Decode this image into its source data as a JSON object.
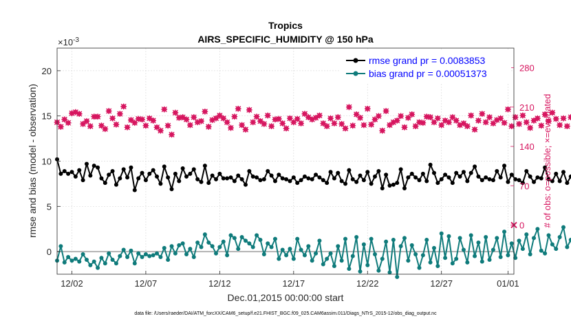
{
  "chart_data": {
    "type": "line",
    "title": "Tropics",
    "subtitle": "AIRS_SPECIFIC_HUMIDITY @ 150 hPa",
    "xlabel": "Dec.01,2015 00:00:00 start",
    "ylabel": "rmse and bias (model - observation)",
    "ylabel_right": "# of obs: o=possible; ×=evaluated",
    "y_exponent_label": "×10",
    "y_exponent_power": "-3",
    "footer": "data file: /Users/raeder/DAI/ATM_forcXX/CAM6_setup/f.e21.FHIST_BGC.f09_025.CAM6assim.011/Diags_NTrS_2015-12/obs_diag_output.nc",
    "x_range_days": [
      0.5,
      31.4
    ],
    "ylim": [
      -2.5,
      22.5
    ],
    "ylim_right": [
      -87.5,
      315
    ],
    "x_ticks": [
      {
        "day": 1.5,
        "label": "12/02"
      },
      {
        "day": 6.5,
        "label": "12/07"
      },
      {
        "day": 11.5,
        "label": "12/12"
      },
      {
        "day": 16.5,
        "label": "12/17"
      },
      {
        "day": 21.5,
        "label": "12/22"
      },
      {
        "day": 26.5,
        "label": "12/27"
      },
      {
        "day": 31.0,
        "label": "01/01"
      }
    ],
    "y_ticks": [
      "0",
      "5",
      "10",
      "15",
      "20"
    ],
    "y_ticks_right": [
      "0",
      "70",
      "140",
      "210",
      "280"
    ],
    "legend": [
      {
        "name": "rmse grand pr = 0.0083853",
        "color": "#000000"
      },
      {
        "name": "bias grand pr = 0.00051373",
        "color": "#0f7b7b"
      }
    ],
    "x_start_day": 0.5,
    "x_step_days": 0.25,
    "series": [
      {
        "name": "rmse",
        "color": "#000000",
        "values": [
          10.2,
          8.6,
          8.9,
          8.6,
          8.8,
          8.3,
          9.0,
          7.9,
          9.7,
          8.4,
          9.5,
          9.3,
          8.1,
          7.6,
          8.5,
          8.9,
          7.4,
          8.1,
          9.1,
          8.2,
          9.3,
          6.8,
          8.1,
          8.7,
          7.9,
          8.6,
          9.0,
          8.3,
          7.5,
          9.4,
          8.2,
          6.9,
          8.6,
          7.8,
          9.2,
          8.3,
          8.6,
          9.1,
          8.0,
          7.7,
          9.5,
          7.6,
          8.4,
          8.0,
          8.6,
          8.1,
          8.1,
          8.2,
          7.8,
          8.4,
          8.0,
          7.4,
          8.9,
          8.3,
          8.2,
          7.9,
          8.0,
          8.9,
          8.4,
          7.8,
          8.5,
          8.1,
          8.0,
          7.8,
          8.2,
          7.6,
          7.9,
          8.3,
          8.1,
          8.0,
          8.5,
          8.2,
          7.9,
          7.6,
          8.8,
          8.1,
          8.7,
          7.8,
          7.5,
          9.0,
          8.0,
          7.7,
          8.4,
          7.9,
          8.8,
          7.5,
          8.3,
          8.9,
          7.0,
          8.5,
          7.3,
          7.4,
          7.6,
          9.1,
          7.0,
          8.2,
          8.6,
          8.2,
          7.9,
          8.6,
          7.8,
          9.6,
          8.7,
          7.6,
          8.0,
          8.5,
          8.2,
          7.6,
          8.7,
          8.3,
          8.8,
          7.8,
          8.7,
          9.4,
          8.3,
          7.9,
          8.2,
          8.0,
          7.9,
          8.9,
          8.2,
          9.5,
          7.7,
          8.5,
          8.0,
          7.9,
          7.6,
          8.9,
          8.3,
          7.7,
          8.2,
          8.1,
          9.3,
          8.0,
          7.8,
          8.6,
          7.8,
          8.8,
          7.6,
          8.3,
          8.0,
          8.4,
          7.7,
          8.8,
          8.0,
          7.6,
          9.2,
          8.2,
          7.4,
          9.1,
          7.9,
          8.7,
          8.5,
          8.0,
          9.3,
          7.6,
          8.4,
          9.2,
          8.3,
          7.7,
          8.1,
          8.6,
          7.9,
          9.2,
          7.3,
          8.9,
          8.7,
          8.0,
          9.5,
          7.8,
          8.3,
          7.5,
          9.3,
          8.8,
          8.0,
          7.6,
          8.7,
          9.0,
          8.1,
          7.9,
          8.2,
          8.6,
          7.4,
          8.8,
          9.1,
          8.1,
          8.6,
          10.0,
          8.5,
          9.3,
          8.3,
          10.6,
          7.7,
          9.1,
          8.4,
          10.8,
          8.0,
          7.6
        ]
      },
      {
        "name": "bias",
        "color": "#0f7b7b",
        "values": [
          -1.0,
          0.6,
          -1.2,
          -0.6,
          -1.0,
          -0.8,
          -1.1,
          -0.3,
          -0.9,
          -1.5,
          -1.1,
          -1.8,
          -0.7,
          -1.3,
          -0.2,
          -0.9,
          -1.3,
          -0.5,
          0.2,
          -0.6,
          0.1,
          -1.3,
          -0.2,
          -0.6,
          -0.3,
          -0.5,
          -0.4,
          -0.2,
          -0.6,
          0.4,
          -0.9,
          0.6,
          -0.2,
          0.7,
          0.9,
          -0.3,
          0.3,
          -0.6,
          1.0,
          0.5,
          1.9,
          1.0,
          0.6,
          -0.2,
          0.5,
          1.1,
          -0.4,
          1.8,
          1.5,
          0.3,
          1.6,
          1.2,
          0.9,
          0.5,
          1.8,
          1.3,
          -0.3,
          0.9,
          0.5,
          1.4,
          -0.8,
          0.2,
          -0.4,
          0.3,
          -0.8,
          1.4,
          0.2,
          -0.4,
          0.6,
          -1.0,
          -0.2,
          1.2,
          -1.4,
          -0.8,
          -0.2,
          -1.6,
          0.6,
          -1.0,
          1.4,
          -1.9,
          -0.5,
          1.6,
          -2.2,
          0.8,
          -1.5,
          1.4,
          -0.3,
          -2.1,
          -0.8,
          1.1,
          -2.3,
          1.3,
          -2.8,
          0.6,
          1.5,
          -1.0,
          0.7,
          -0.3,
          -1.8,
          -0.4,
          1.3,
          -1.2,
          0.4,
          -1.6,
          2.0,
          -0.7,
          1.7,
          -1.3,
          -0.8,
          1.5,
          0.2,
          -1.2,
          1.8,
          -0.5,
          1.0,
          -1.1,
          1.6,
          -0.9,
          0.2,
          1.5,
          -0.6,
          2.2,
          -0.4,
          0.9,
          -0.7,
          1.2,
          0.3,
          1.9,
          -0.3,
          1.5,
          2.5,
          0.1,
          -0.2,
          1.8,
          0.8,
          0.3,
          1.6,
          2.7,
          0.5,
          1.3,
          -0.2,
          2.2,
          0.6,
          1.4,
          0.9,
          2.0,
          0.2,
          1.6,
          2.4,
          0.7,
          1.5,
          0.4,
          1.9,
          1.0,
          2.8,
          0.6,
          1.2,
          0.9,
          2.1,
          0.3,
          3.2,
          1.1,
          0.8,
          1.9,
          0.4,
          2.9,
          1.3,
          1.8,
          0.6,
          1.4,
          2.4,
          0.9,
          1.1,
          2.2,
          0.5,
          1.6,
          0.9,
          1.7,
          0.4,
          1.3,
          0.6,
          1.0,
          1.6,
          0.8,
          -0.2,
          0.4,
          1.1,
          0.7,
          1.3,
          3.5,
          2.1,
          0.9,
          1.7,
          2.0,
          0.9
        ]
      }
    ],
    "obs_possible": [
      183,
      175,
      188,
      182,
      199,
      201,
      198,
      180,
      185,
      176,
      193,
      193,
      177,
      171,
      203,
      190,
      179,
      198,
      211,
      174,
      187,
      182,
      189,
      188,
      177,
      190,
      186,
      174,
      168,
      206,
      177,
      161,
      200,
      191,
      192,
      188,
      178,
      192,
      183,
      185,
      202,
      175,
      187,
      190,
      195,
      190,
      183,
      173,
      193,
      207,
      178,
      170,
      205,
      183,
      193,
      185,
      180,
      195,
      176,
      188,
      189,
      181,
      172,
      190,
      183,
      189,
      181,
      198,
      192,
      188,
      191,
      195,
      181,
      176,
      190,
      181,
      192,
      180,
      172,
      210,
      177,
      197,
      191,
      178,
      207,
      179,
      188,
      194,
      168,
      203,
      178,
      183,
      186,
      194,
      174,
      191,
      197,
      176,
      183,
      182,
      193,
      192,
      183,
      190,
      178,
      186,
      183,
      192,
      186,
      178,
      181,
      176,
      195,
      170,
      186,
      198,
      183,
      192,
      181,
      187,
      190,
      182,
      206,
      176,
      192,
      180,
      195,
      183,
      173,
      186,
      190,
      177,
      197,
      185,
      200,
      189,
      178,
      190,
      176,
      192,
      186,
      186,
      190,
      181,
      184,
      195,
      178,
      175,
      201,
      183,
      172,
      201,
      186,
      184,
      191,
      183,
      198,
      176,
      190,
      202,
      193,
      178,
      181,
      183,
      181,
      207,
      175,
      194,
      191,
      183,
      205,
      174,
      188,
      173,
      200,
      196,
      182,
      179,
      191,
      198,
      192,
      183,
      185,
      190,
      174,
      196,
      198,
      181,
      193,
      207,
      187,
      188,
      183,
      191,
      175,
      187,
      184,
      208,
      177,
      165
    ],
    "obs_evaluated": [
      183,
      175,
      188,
      182,
      199,
      201,
      198,
      180,
      185,
      176,
      193,
      193,
      177,
      171,
      203,
      190,
      179,
      198,
      211,
      174,
      187,
      182,
      189,
      188,
      177,
      190,
      186,
      174,
      168,
      206,
      177,
      161,
      200,
      191,
      192,
      188,
      178,
      192,
      183,
      185,
      202,
      175,
      187,
      190,
      195,
      190,
      183,
      173,
      193,
      207,
      178,
      170,
      205,
      183,
      193,
      185,
      180,
      195,
      176,
      188,
      189,
      181,
      172,
      190,
      183,
      189,
      181,
      198,
      192,
      188,
      191,
      195,
      181,
      176,
      190,
      181,
      192,
      180,
      172,
      210,
      177,
      197,
      191,
      178,
      207,
      179,
      188,
      194,
      168,
      203,
      178,
      183,
      186,
      194,
      174,
      191,
      197,
      176,
      183,
      182,
      193,
      192,
      183,
      190,
      178,
      186,
      183,
      192,
      186,
      178,
      181,
      176,
      195,
      170,
      186,
      198,
      183,
      192,
      181,
      187,
      190,
      182,
      206,
      176,
      192,
      180,
      195,
      183,
      173,
      186,
      190,
      177,
      197,
      185,
      200,
      189,
      178,
      190,
      176,
      192,
      186,
      186,
      190,
      181,
      184,
      195,
      178,
      175,
      201,
      183,
      172,
      201,
      186,
      184,
      191,
      183,
      198,
      176,
      190,
      202,
      193,
      178,
      181,
      183,
      181,
      207,
      175,
      194,
      191,
      183,
      205,
      174,
      188,
      173,
      200,
      196,
      182,
      179,
      191,
      198,
      192,
      183,
      185,
      190,
      174,
      196,
      198,
      181,
      193,
      207,
      187,
      188,
      183,
      191,
      175,
      187,
      184,
      208,
      177,
      165
    ]
  }
}
